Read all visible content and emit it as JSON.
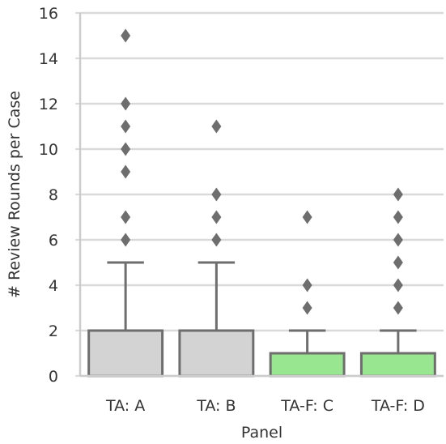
{
  "chart_data": {
    "type": "box",
    "title": "",
    "xlabel": "Panel",
    "ylabel": "# Review Rounds per Case",
    "ylim": [
      0,
      16
    ],
    "yticks": [
      0,
      2,
      4,
      6,
      8,
      10,
      12,
      14,
      16
    ],
    "ytick_labels": [
      "0",
      "2",
      "4",
      "6",
      "8",
      "10",
      "12",
      "14",
      "16"
    ],
    "grid": "horizontal",
    "categories": [
      "TA: A",
      "TA: B",
      "TA-F: C",
      "TA-F: D"
    ],
    "boxes": [
      {
        "category": "TA: A",
        "min": 0,
        "q1": 0,
        "median": 0,
        "q3": 2,
        "whisker_high": 5,
        "fliers": [
          6,
          7,
          9,
          10,
          11,
          12,
          15
        ],
        "color": "#d3d3d3"
      },
      {
        "category": "TA: B",
        "min": 0,
        "q1": 0,
        "median": 0,
        "q3": 2,
        "whisker_high": 5,
        "fliers": [
          6,
          7,
          8,
          11
        ],
        "color": "#d3d3d3"
      },
      {
        "category": "TA-F: C",
        "min": 0,
        "q1": 0,
        "median": 0,
        "q3": 1,
        "whisker_high": 2,
        "fliers": [
          3,
          4,
          7
        ],
        "color": "#98e690"
      },
      {
        "category": "TA-F: D",
        "min": 0,
        "q1": 0,
        "median": 0,
        "q3": 1,
        "whisker_high": 2,
        "fliers": [
          3,
          4,
          5,
          6,
          7,
          8
        ],
        "color": "#98e690"
      }
    ],
    "line_color": "#6e6e6e",
    "grid_color": "#d9d9d9"
  }
}
